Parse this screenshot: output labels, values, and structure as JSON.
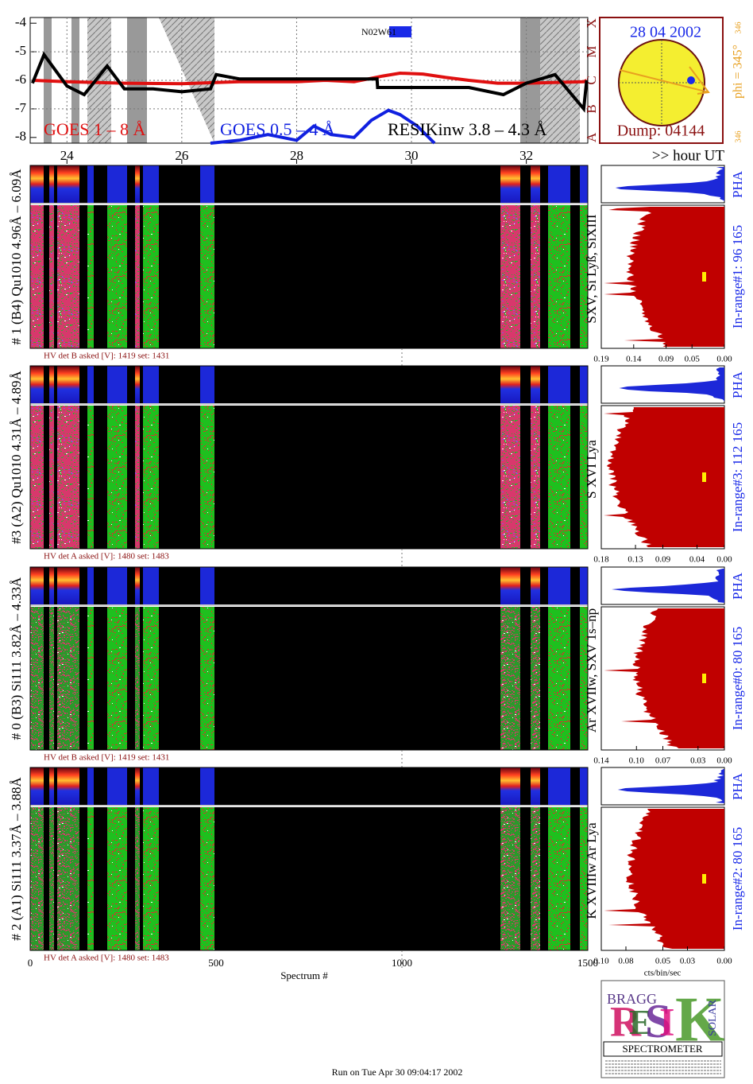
{
  "chart_data": [
    {
      "type": "line",
      "series": [
        {
          "name": "GOES 1 – 8 Å",
          "color": "#e01010",
          "x": [
            23.4,
            24,
            25,
            26,
            27,
            28,
            28.5,
            29,
            29.5,
            29.8,
            30.2,
            30.6,
            31,
            31.5,
            32,
            33,
            33.05
          ],
          "values": [
            -6.0,
            -6.05,
            -6.1,
            -6.12,
            -6.05,
            -6.05,
            -6.0,
            -6.05,
            -5.85,
            -5.75,
            -5.78,
            -5.9,
            -6.0,
            -6.1,
            -6.1,
            -6.05,
            -6.0
          ]
        },
        {
          "name": "GOES 0.5 – 4 Å",
          "color": "#1020e0",
          "x": [
            26.5,
            27,
            27.5,
            28,
            28.3,
            28.6,
            29,
            29.3,
            29.6,
            29.8,
            30.1,
            30.4
          ],
          "values": [
            -8.2,
            -8.1,
            -7.9,
            -8.1,
            -7.6,
            -7.9,
            -8.0,
            -7.4,
            -7.05,
            -7.2,
            -7.6,
            -8.2
          ]
        },
        {
          "name": "RESIKinw 3.8 – 4.3 Å",
          "color": "#000000",
          "x": [
            23.4,
            23.6,
            24,
            24.3,
            24.7,
            25,
            25.5,
            26,
            26.5,
            26.6,
            27,
            28,
            29,
            29.4,
            29.41,
            31,
            31.6,
            32,
            32.5,
            33,
            33.05
          ],
          "values": [
            -6.1,
            -5.1,
            -6.2,
            -6.5,
            -5.5,
            -6.3,
            -6.3,
            -6.4,
            -6.3,
            -5.8,
            -5.95,
            -5.95,
            -5.95,
            -5.95,
            -6.25,
            -6.25,
            -6.5,
            -6.1,
            -5.8,
            -7.0,
            -6.0
          ]
        }
      ],
      "xlim": [
        23.36,
        33.07
      ],
      "xticks": [
        24,
        26,
        28,
        30,
        32
      ],
      "ylim": [
        -8.2,
        -3.8
      ],
      "yticks": [
        -4,
        -5,
        -6,
        -7,
        -8
      ],
      "class_labels": [
        "X",
        "M",
        "C",
        "B",
        "A"
      ],
      "x_unit_label": ">> hour UT",
      "annotation": "N02W61",
      "grid": true
    }
  ],
  "sun": {
    "date": "28 04 2002",
    "dump": "Dump: 04144",
    "phi": "phi = 345°",
    "corner_top": "346",
    "corner_bottom": "346"
  },
  "spectrum_axis": {
    "label": "Spectrum #",
    "xlim": [
      0,
      1500
    ],
    "xticks": [
      0,
      500,
      1000,
      1500
    ]
  },
  "detectors": [
    {
      "label": "# 1 (B4) Qu1010 4.96Å – 6.09Å",
      "hv": "HV det B asked [V]:  1419 set:  1431",
      "lines": "SXV, Si Lyß, SiXIII",
      "range": "In-range#1:   96 165",
      "pha": "PHA",
      "xlim": [
        0.19,
        0
      ],
      "xticks": [
        0.19,
        0.14,
        0.09,
        0.05,
        {
          "value": 0,
          "label": "0.00"
        }
      ]
    },
    {
      "label": "#3 (A2) Qu1010 4.31Å – 4.89Å",
      "hv": "HV det A asked [V]:  1480 set:  1483",
      "lines": "S XVI Lya",
      "range": "In-range#3:  112 165",
      "pha": "PHA",
      "xlim": [
        0.18,
        0
      ],
      "xticks": [
        0.18,
        0.13,
        0.09,
        0.04,
        {
          "value": 0,
          "label": "0.00"
        }
      ]
    },
    {
      "label": "# 0 (B3) Si111 3.82Å – 4.33Å",
      "hv": "HV det B asked [V]:  1419 set:  1431",
      "lines": "Ar XVIIw,  SXV 1s–np",
      "range": "In-range#0:   80 165",
      "pha": "PHA",
      "xlim": [
        0.14,
        0
      ],
      "xticks": [
        0.14,
        {
          "value": 0.1,
          "label": "0.10"
        },
        0.07,
        0.03,
        {
          "value": 0,
          "label": "0.00"
        }
      ]
    },
    {
      "label": "# 2 (A1) Si111 3.37Å – 3.88Å",
      "hv": "HV det A asked [V]:  1480 set:  1483",
      "lines": "K XVIIIw  Ar Lya",
      "range": "In-range#2:   80 165",
      "pha": "PHA",
      "xlim": [
        {
          "value": 0.1,
          "label": "0.10"
        },
        0
      ],
      "xticks": [
        {
          "value": 0.1,
          "label": "0.10"
        },
        0.08,
        0.05,
        0.03,
        {
          "value": 0,
          "label": "0.00"
        }
      ]
    }
  ],
  "units_label": "cts/bin/sec",
  "logo": {
    "top": "BRAGG",
    "letters": [
      "R",
      "E",
      "S",
      "I",
      "K"
    ],
    "side": "SOLAR",
    "bottom": "SPECTROMETER"
  },
  "footer": "Run on Tue Apr 30 09:04:17 2002"
}
